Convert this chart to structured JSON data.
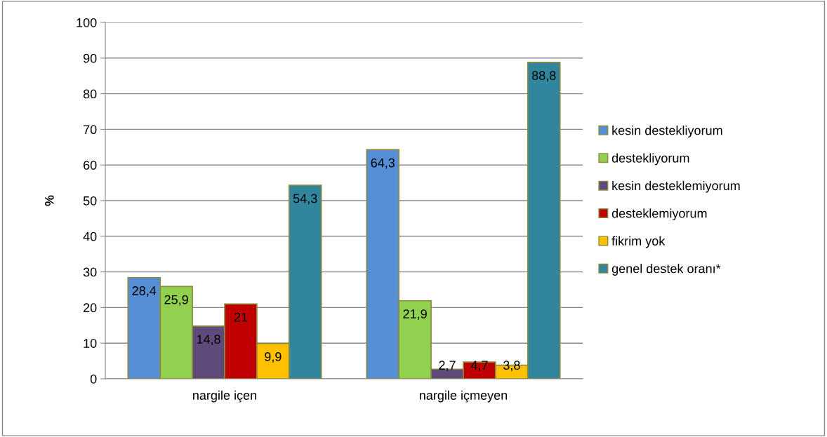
{
  "chart_data": {
    "type": "bar",
    "ylabel": "%",
    "categories": [
      "nargile içen",
      "nargile içmeyen"
    ],
    "series": [
      {
        "name": "kesin destekliyorum",
        "color": "#558ed5",
        "values": [
          28.4,
          64.3
        ],
        "value_labels": [
          "28,4",
          "64,3"
        ]
      },
      {
        "name": "destekliyorum",
        "color": "#92d050",
        "values": [
          25.9,
          21.9
        ],
        "value_labels": [
          "25,9",
          "21,9"
        ]
      },
      {
        "name": "kesin desteklemiyorum",
        "color": "#604a7b",
        "values": [
          14.8,
          2.7
        ],
        "value_labels": [
          "14,8",
          "2,7"
        ]
      },
      {
        "name": "desteklemiyorum",
        "color": "#c00000",
        "values": [
          21,
          4.7
        ],
        "value_labels": [
          "21",
          "4,7"
        ]
      },
      {
        "name": "fikrim yok",
        "color": "#ffc000",
        "values": [
          9.9,
          3.8
        ],
        "value_labels": [
          "9,9",
          "3,8"
        ]
      },
      {
        "name": "genel destek oranı*",
        "color": "#31859c",
        "values": [
          54.3,
          88.8
        ],
        "value_labels": [
          "54,3",
          "88,8"
        ]
      }
    ],
    "ylim": [
      0,
      100
    ],
    "yticks": [
      0,
      10,
      20,
      30,
      40,
      50,
      60,
      70,
      80,
      90,
      100
    ],
    "grid": "y",
    "legend": "right"
  }
}
